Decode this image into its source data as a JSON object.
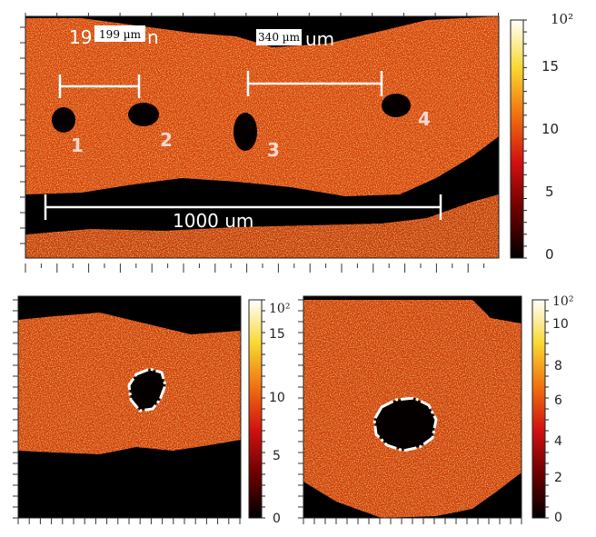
{
  "top_panel": {
    "scale_label_1": "199 µm",
    "scale_label_1_prefix": "19",
    "scale_label_1_suffix": "n",
    "scale_label_2": "340 µm",
    "scale_label_2_suffix": "um",
    "scale_label_3": "1000 um",
    "holes": [
      "1",
      "2",
      "3",
      "4"
    ],
    "colorbar": {
      "exponent_label": "10²",
      "ticks": [
        "15",
        "10",
        "5",
        "0"
      ]
    }
  },
  "bottom_left_panel": {
    "colorbar": {
      "exponent_label": "10²",
      "ticks": [
        "15",
        "10",
        "5",
        "0"
      ]
    }
  },
  "bottom_right_panel": {
    "colorbar": {
      "exponent_label": "10²",
      "ticks": [
        "10",
        "8",
        "6",
        "4",
        "2",
        "0"
      ]
    }
  },
  "colors": {
    "background": "#000000",
    "tissue": "#d8400c",
    "bright": "#ffe060",
    "scale_bar": "#ffffff"
  }
}
